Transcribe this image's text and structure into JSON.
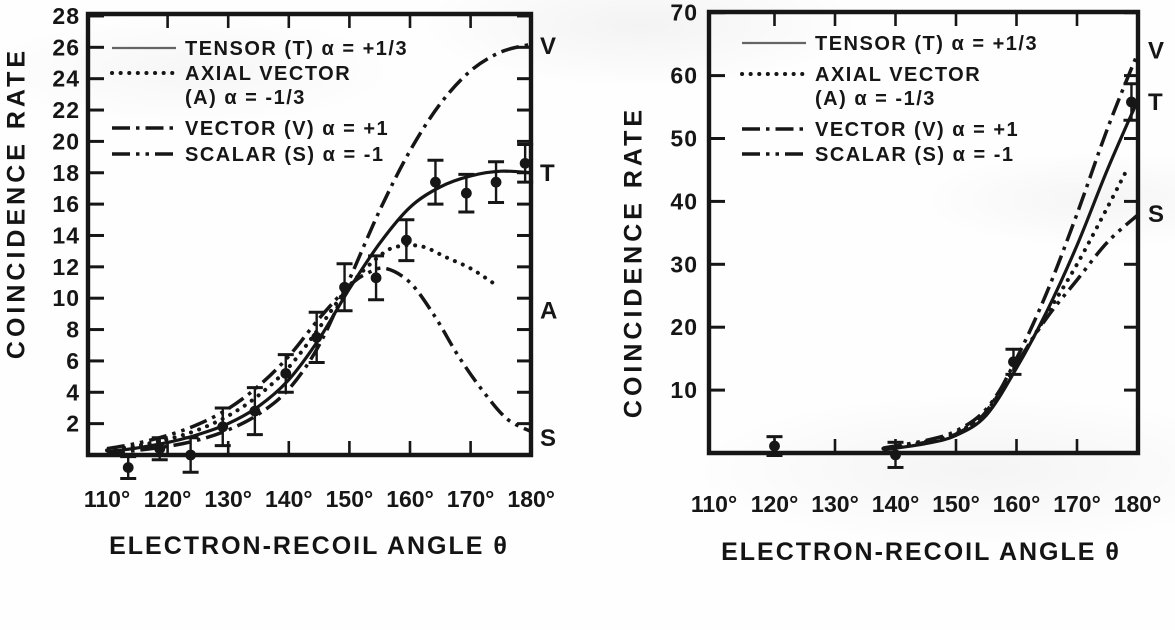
{
  "figure": {
    "ink": "#161616",
    "paper": "#fefefe"
  },
  "chart_data": [
    {
      "id": "left",
      "type": "line",
      "title": "",
      "xlabel": "ELECTRON-RECOIL ANGLE  θ",
      "ylabel": "COINCIDENCE RATE",
      "xlim": [
        110,
        180
      ],
      "ylim": [
        0,
        28
      ],
      "grid": false,
      "legend_position": "top-left",
      "x_ticks": [
        110,
        120,
        130,
        140,
        150,
        160,
        170,
        180
      ],
      "x_tick_labels": [
        "110°",
        "120°",
        "130°",
        "140°",
        "150°",
        "160°",
        "170°",
        "180°"
      ],
      "y_ticks": [
        2,
        4,
        6,
        8,
        10,
        12,
        14,
        16,
        18,
        20,
        22,
        24,
        26,
        28
      ],
      "y_tick_labels": [
        "2",
        "4",
        "6",
        "8",
        "10",
        "12",
        "14",
        "16",
        "18",
        "20",
        "22",
        "24",
        "26",
        "28"
      ],
      "legend": [
        {
          "style": "solid",
          "lines": [
            "TENSOR (T) α = +1/3"
          ]
        },
        {
          "style": "dotted",
          "lines": [
            "AXIAL VECTOR",
            "(A) α = -1/3"
          ]
        },
        {
          "style": "dashdot",
          "lines": [
            "VECTOR (V) α = +1"
          ]
        },
        {
          "style": "dashdotdot",
          "lines": [
            "SCALAR (S) α = -1"
          ]
        }
      ],
      "series": [
        {
          "name": "TENSOR (T)",
          "style": "solid",
          "end_label": "T",
          "end_label_value": 18.0,
          "x": [
            110,
            115,
            120,
            125,
            130,
            135,
            140,
            145,
            150,
            155,
            160,
            165,
            170,
            175,
            180
          ],
          "y": [
            0.2,
            0.45,
            0.8,
            1.3,
            2.0,
            3.1,
            4.8,
            7.4,
            10.6,
            13.5,
            15.8,
            17.1,
            17.8,
            18.1,
            18.0
          ]
        },
        {
          "name": "AXIAL VECTOR (A)",
          "style": "dotted",
          "end_label": "A",
          "end_label_value": 9.2,
          "x": [
            110,
            115,
            120,
            125,
            130,
            135,
            140,
            145,
            150,
            155,
            158,
            162,
            166,
            170,
            174
          ],
          "y": [
            0.3,
            0.6,
            1.0,
            1.6,
            2.5,
            3.8,
            5.6,
            8.1,
            10.8,
            12.7,
            13.3,
            13.3,
            12.6,
            11.9,
            10.9
          ]
        },
        {
          "name": "VECTOR (V)",
          "style": "dashdot",
          "end_label": "V",
          "end_label_value": 26.1,
          "x": [
            110,
            115,
            120,
            125,
            130,
            135,
            140,
            145,
            150,
            155,
            160,
            165,
            170,
            175,
            180
          ],
          "y": [
            0.1,
            0.3,
            0.55,
            0.95,
            1.6,
            2.6,
            4.2,
            7.0,
            11.2,
            15.6,
            19.4,
            22.4,
            24.5,
            25.7,
            26.2
          ]
        },
        {
          "name": "SCALAR (S)",
          "style": "dashdotdot",
          "end_label": "S",
          "end_label_value": 1.1,
          "x": [
            110,
            115,
            120,
            125,
            130,
            135,
            140,
            145,
            150,
            153,
            156,
            160,
            164,
            168,
            172,
            176,
            180
          ],
          "y": [
            0.4,
            0.75,
            1.25,
            1.95,
            2.95,
            4.4,
            6.3,
            8.7,
            10.8,
            11.6,
            11.9,
            11.0,
            8.9,
            6.3,
            4.1,
            2.3,
            1.5
          ]
        }
      ],
      "points": {
        "x": [
          113.5,
          118.7,
          123.8,
          129.1,
          134.4,
          139.5,
          144.6,
          149.2,
          154.4,
          159.4,
          164.2,
          169.3,
          174.2,
          179.0
        ],
        "y": [
          -0.8,
          0.4,
          0.0,
          1.8,
          2.8,
          5.2,
          7.5,
          10.7,
          11.3,
          13.7,
          17.4,
          16.7,
          17.4,
          18.6
        ],
        "yerr": [
          0.7,
          0.7,
          1.1,
          1.2,
          1.5,
          1.2,
          1.6,
          1.5,
          1.4,
          1.3,
          1.4,
          1.2,
          1.3,
          1.2
        ]
      }
    },
    {
      "id": "right",
      "type": "line",
      "title": "",
      "xlabel": "ELECTRON-RECOIL ANGLE  θ",
      "ylabel": "COINCIDENCE RATE",
      "xlim": [
        110,
        180
      ],
      "ylim": [
        0,
        70
      ],
      "grid": false,
      "legend_position": "top-left",
      "x_ticks": [
        110,
        120,
        130,
        140,
        150,
        160,
        170,
        180
      ],
      "x_tick_labels": [
        "110°",
        "120°",
        "130°",
        "140°",
        "150°",
        "160°",
        "170°",
        "180°"
      ],
      "y_ticks": [
        10,
        20,
        30,
        40,
        50,
        60,
        70
      ],
      "y_tick_labels": [
        "10",
        "20",
        "30",
        "40",
        "50",
        "60",
        "70"
      ],
      "legend": [
        {
          "style": "solid",
          "lines": [
            "TENSOR (T) α = +1/3"
          ]
        },
        {
          "style": "dotted",
          "lines": [
            "AXIAL VECTOR",
            "(A) α = -1/3"
          ]
        },
        {
          "style": "dashdot",
          "lines": [
            "VECTOR (V) α = +1"
          ]
        },
        {
          "style": "dashdotdot",
          "lines": [
            "SCALAR (S) α = -1"
          ]
        }
      ],
      "series": [
        {
          "name": "TENSOR (T)",
          "style": "solid",
          "end_label": "T",
          "end_label_value": 55.8,
          "x": [
            138,
            145,
            150,
            155,
            160,
            165,
            170,
            175,
            180
          ],
          "y": [
            0.5,
            1.5,
            2.8,
            6.0,
            13.5,
            22.5,
            33.0,
            45.0,
            56.0
          ]
        },
        {
          "name": "AXIAL VECTOR (A)",
          "style": "dotted",
          "end_label": "",
          "end_label_value": 45.5,
          "x": [
            138,
            145,
            150,
            155,
            160,
            165,
            170,
            175,
            178.5
          ],
          "y": [
            0.7,
            1.8,
            3.2,
            6.6,
            14.0,
            22.0,
            30.0,
            39.0,
            45.5
          ]
        },
        {
          "name": "VECTOR (V)",
          "style": "dashdot",
          "end_label": "V",
          "end_label_value": 64.0,
          "x": [
            138,
            145,
            150,
            155,
            160,
            165,
            170,
            175,
            180
          ],
          "y": [
            0.6,
            1.7,
            3.0,
            6.6,
            15.0,
            25.5,
            38.0,
            51.5,
            63.5
          ]
        },
        {
          "name": "SCALAR (S)",
          "style": "dashdotdot",
          "end_label": "S",
          "end_label_value": 38.0,
          "x": [
            138,
            145,
            150,
            155,
            160,
            165,
            170,
            175,
            180
          ],
          "y": [
            0.8,
            2.0,
            3.5,
            7.0,
            14.2,
            21.5,
            27.5,
            33.5,
            37.8
          ]
        }
      ],
      "points": {
        "x": [
          120,
          140,
          159.5,
          179
        ],
        "y": [
          1.1,
          -0.3,
          14.5,
          55.8
        ],
        "yerr": [
          1.5,
          2.0,
          2.0,
          2.9
        ]
      }
    }
  ]
}
